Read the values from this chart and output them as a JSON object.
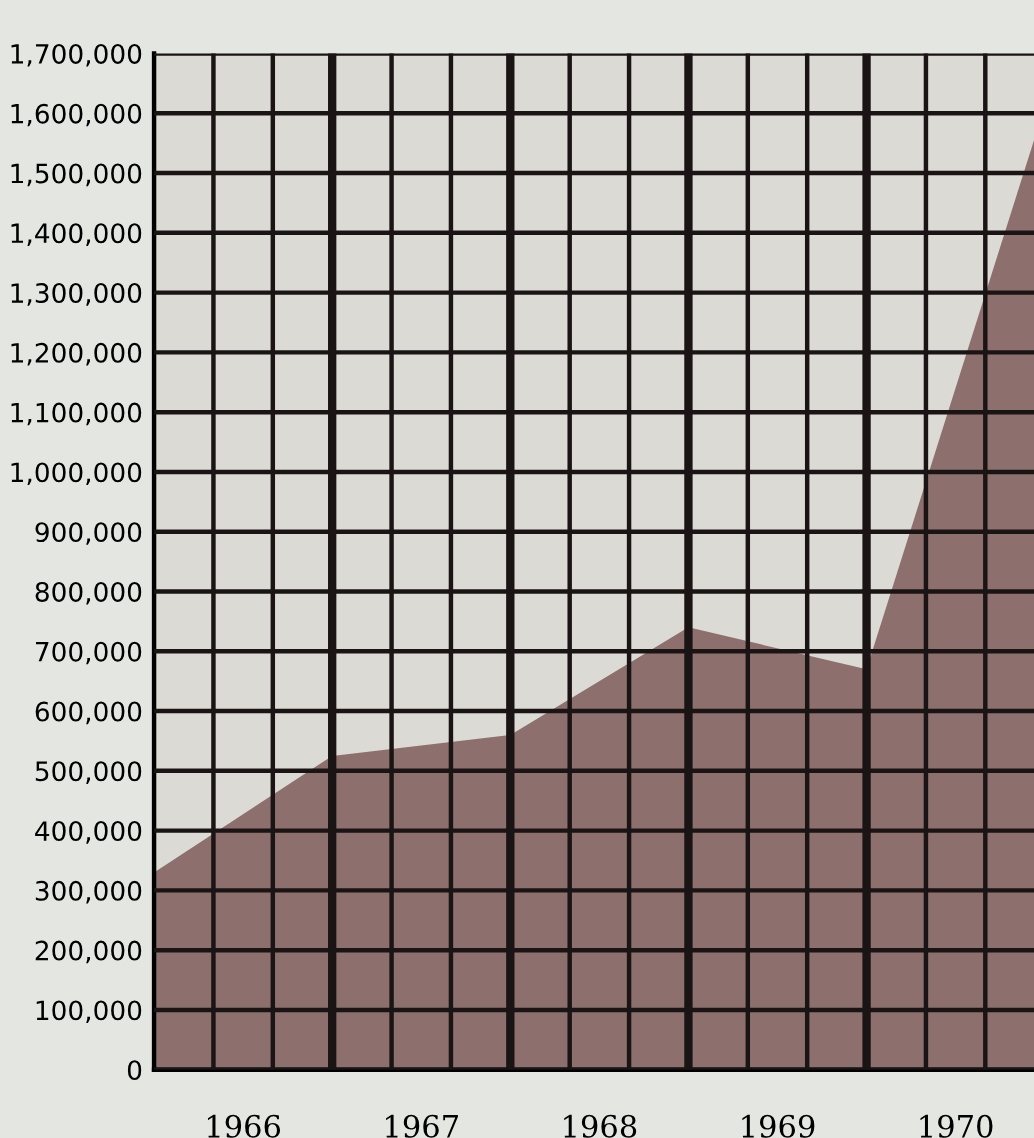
{
  "chart_data": {
    "type": "area",
    "x": [
      1966,
      1967,
      1968,
      1969,
      1970,
      1970.94
    ],
    "series": [
      {
        "color": "#8d706e",
        "values": [
          330000,
          525000,
          560000,
          740000,
          670000,
          1555000
        ]
      }
    ],
    "xlim": [
      1966,
      1970.94
    ],
    "xticks": [
      {
        "value": 1966.5,
        "label": "1966"
      },
      {
        "value": 1967.5,
        "label": "1967"
      },
      {
        "value": 1968.5,
        "label": "1968"
      },
      {
        "value": 1969.5,
        "label": "1969"
      },
      {
        "value": 1970.5,
        "label": "1970"
      }
    ],
    "ylim": [
      0,
      1700000
    ],
    "yticks": [
      {
        "value": 0,
        "label": "0"
      },
      {
        "value": 100000,
        "label": "100,000"
      },
      {
        "value": 200000,
        "label": "200,000"
      },
      {
        "value": 300000,
        "label": "300,000"
      },
      {
        "value": 400000,
        "label": "400,000"
      },
      {
        "value": 500000,
        "label": "500,000"
      },
      {
        "value": 600000,
        "label": "600,000"
      },
      {
        "value": 700000,
        "label": "700,000"
      },
      {
        "value": 800000,
        "label": "800,000"
      },
      {
        "value": 900000,
        "label": "900,000"
      },
      {
        "value": 1000000,
        "label": "1,000,000"
      },
      {
        "value": 1100000,
        "label": "1,100,000"
      },
      {
        "value": 1200000,
        "label": "1,200,000"
      },
      {
        "value": 1300000,
        "label": "1,300,000"
      },
      {
        "value": 1400000,
        "label": "1,400,000"
      },
      {
        "value": 1500000,
        "label": "1,500,000"
      },
      {
        "value": 1600000,
        "label": "1,600,000"
      },
      {
        "value": 1700000,
        "label": "1,700,000"
      }
    ],
    "grid": true,
    "legend": false
  }
}
